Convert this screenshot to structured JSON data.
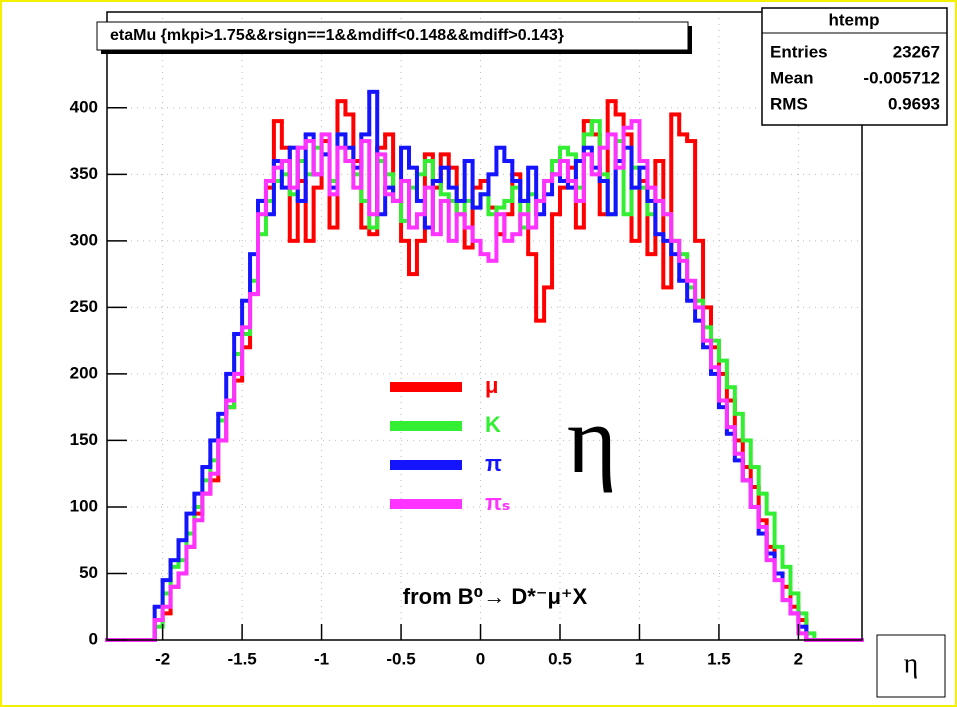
{
  "chart_data": {
    "type": "histogram",
    "title": "etaMu {mkpi>1.75&&rsign==1&&mdiff<0.148&&mdiff>0.143}",
    "x_label": "η",
    "bins": [
      -2.35,
      -2.3,
      -2.25,
      -2.2,
      -2.15,
      -2.1,
      -2.05,
      -2,
      -1.95,
      -1.9,
      -1.85,
      -1.8,
      -1.75,
      -1.7,
      -1.65,
      -1.6,
      -1.55,
      -1.5,
      -1.45,
      -1.4,
      -1.35,
      -1.3,
      -1.25,
      -1.2,
      -1.15,
      -1.1,
      -1.05,
      -1,
      -0.95,
      -0.9,
      -0.85,
      -0.8,
      -0.75,
      -0.7,
      -0.65,
      -0.6,
      -0.55,
      -0.5,
      -0.45,
      -0.4,
      -0.35,
      -0.3,
      -0.25,
      -0.2,
      -0.15,
      -0.1,
      -0.05,
      0,
      0.05,
      0.1,
      0.15,
      0.2,
      0.25,
      0.3,
      0.35,
      0.4,
      0.45,
      0.5,
      0.55,
      0.6,
      0.65,
      0.7,
      0.75,
      0.8,
      0.85,
      0.9,
      0.95,
      1,
      1.05,
      1.1,
      1.15,
      1.2,
      1.25,
      1.3,
      1.35,
      1.4,
      1.45,
      1.5,
      1.55,
      1.6,
      1.65,
      1.7,
      1.75,
      1.8,
      1.85,
      1.9,
      1.95,
      2,
      2.05,
      2.1,
      2.15,
      2.2,
      2.25,
      2.3,
      2.35,
      2.4
    ],
    "series": [
      {
        "name": "μ",
        "color": "#ff0000",
        "values": [
          0,
          0,
          0,
          0,
          0,
          0,
          15,
          20,
          40,
          50,
          70,
          95,
          110,
          120,
          150,
          175,
          195,
          220,
          260,
          330,
          340,
          390,
          370,
          300,
          345,
          300,
          340,
          375,
          310,
          405,
          395,
          360,
          310,
          305,
          370,
          380,
          330,
          300,
          275,
          300,
          365,
          340,
          365,
          355,
          320,
          295,
          340,
          345,
          325,
          305,
          320,
          350,
          330,
          290,
          240,
          265,
          320,
          340,
          355,
          310,
          390,
          380,
          320,
          405,
          395,
          380,
          300,
          345,
          290,
          360,
          265,
          395,
          380,
          375,
          300,
          250,
          220,
          200,
          180,
          150,
          130,
          115,
          90,
          70,
          50,
          40,
          25,
          15,
          0,
          0,
          0,
          0,
          0,
          0,
          0
        ]
      },
      {
        "name": "K",
        "color": "#33ee33",
        "values": [
          0,
          0,
          0,
          0,
          0,
          0,
          10,
          35,
          55,
          60,
          80,
          100,
          120,
          135,
          165,
          175,
          215,
          230,
          270,
          305,
          330,
          345,
          350,
          335,
          360,
          350,
          370,
          365,
          345,
          380,
          360,
          350,
          330,
          310,
          360,
          350,
          330,
          315,
          340,
          350,
          360,
          345,
          335,
          330,
          320,
          330,
          325,
          335,
          320,
          325,
          330,
          340,
          310,
          335,
          330,
          345,
          360,
          370,
          365,
          340,
          380,
          390,
          350,
          320,
          375,
          320,
          355,
          340,
          320,
          330,
          320,
          300,
          290,
          265,
          255,
          235,
          225,
          210,
          190,
          170,
          150,
          130,
          110,
          95,
          70,
          55,
          35,
          20,
          5,
          0,
          0,
          0,
          0,
          0,
          0
        ]
      },
      {
        "name": "π",
        "color": "#1414ff",
        "values": [
          0,
          0,
          0,
          0,
          0,
          0,
          25,
          45,
          60,
          75,
          95,
          110,
          130,
          150,
          170,
          200,
          230,
          255,
          290,
          330,
          320,
          360,
          340,
          370,
          330,
          380,
          350,
          365,
          340,
          380,
          370,
          355,
          380,
          412,
          320,
          340,
          330,
          370,
          355,
          330,
          310,
          345,
          355,
          340,
          330,
          360,
          325,
          335,
          350,
          370,
          360,
          345,
          330,
          355,
          320,
          335,
          350,
          345,
          340,
          360,
          370,
          355,
          345,
          320,
          360,
          370,
          340,
          355,
          330,
          305,
          300,
          290,
          270,
          255,
          240,
          220,
          200,
          175,
          155,
          135,
          120,
          100,
          80,
          65,
          50,
          30,
          20,
          10,
          0,
          0,
          0,
          0,
          0,
          0,
          0
        ]
      },
      {
        "name": "πₛ",
        "color": "#ff33ff",
        "values": [
          0,
          0,
          0,
          0,
          0,
          0,
          15,
          25,
          40,
          50,
          70,
          90,
          110,
          125,
          150,
          180,
          200,
          235,
          260,
          320,
          345,
          355,
          360,
          340,
          370,
          375,
          350,
          380,
          335,
          370,
          360,
          340,
          375,
          320,
          365,
          335,
          330,
          345,
          310,
          320,
          340,
          305,
          330,
          300,
          320,
          310,
          300,
          290,
          285,
          320,
          300,
          305,
          320,
          310,
          330,
          345,
          350,
          360,
          345,
          330,
          365,
          350,
          370,
          380,
          355,
          385,
          390,
          360,
          340,
          330,
          320,
          300,
          285,
          270,
          250,
          225,
          205,
          180,
          160,
          140,
          120,
          100,
          85,
          60,
          45,
          30,
          20,
          5,
          0,
          0,
          0,
          0,
          0,
          0,
          0
        ]
      }
    ],
    "xlim": [
      -2.35,
      2.4
    ],
    "ylim": [
      0,
      472
    ],
    "xticks": [
      -2,
      -1.5,
      -1,
      -0.5,
      0,
      0.5,
      1,
      1.5,
      2
    ],
    "yticks": [
      0,
      50,
      100,
      150,
      200,
      250,
      300,
      350,
      400
    ],
    "grid": true,
    "annotations": [
      "η",
      "from B⁰→ D*⁻μ⁺X"
    ],
    "stats": {
      "title": "htemp",
      "rows": [
        {
          "label": "Entries",
          "value": 23267
        },
        {
          "label": "Mean",
          "value": -0.005712
        },
        {
          "label": "RMS",
          "value": 0.9693
        }
      ]
    }
  }
}
